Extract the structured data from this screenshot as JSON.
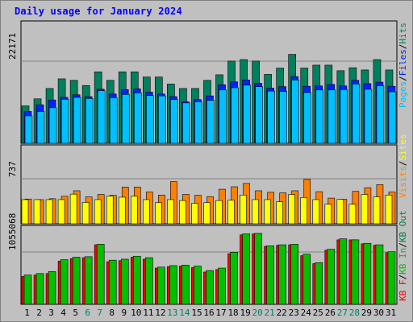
{
  "title": "Daily usage for January 2024",
  "colors": {
    "background": "#c0c0c0",
    "plot_bg": "#c0c0c0",
    "hits": "#00805c",
    "files": "#0024ff",
    "pages": "#00c0ff",
    "visits": "#ffff00",
    "sites": "#ff8000",
    "kb_in": "#00c000",
    "kb_out": "#008040",
    "kb_f": "#ff0000",
    "weekend_label": "#00805c",
    "weekday_label": "#000000",
    "title": "#0000ff"
  },
  "chart_data": [
    {
      "type": "bar",
      "panel": "hits-files-pages",
      "categories": [
        "1",
        "2",
        "3",
        "4",
        "5",
        "6",
        "7",
        "8",
        "9",
        "10",
        "11",
        "12",
        "13",
        "14",
        "15",
        "16",
        "17",
        "18",
        "19",
        "20",
        "21",
        "22",
        "23",
        "24",
        "25",
        "26",
        "27",
        "28",
        "29",
        "30",
        "31"
      ],
      "weekend_days": [
        "6",
        "7",
        "13",
        "14",
        "20",
        "21",
        "27",
        "28"
      ],
      "ytick_label": "22171",
      "ymax": 22171,
      "legend": [
        "Pages",
        "/",
        "Files",
        "/",
        "Hits"
      ],
      "series": [
        {
          "name": "Hits",
          "values": [
            10100,
            12000,
            14800,
            17400,
            17000,
            15600,
            19300,
            17000,
            19300,
            19300,
            17900,
            17900,
            16000,
            14800,
            14800,
            17000,
            18500,
            22200,
            22600,
            22200,
            18600,
            20300,
            24000,
            20300,
            21100,
            21100,
            19600,
            20400,
            19800,
            22600,
            19800
          ]
        },
        {
          "name": "Files",
          "values": [
            8600,
            10400,
            11700,
            12400,
            13100,
            12600,
            14600,
            13300,
            14500,
            14700,
            13800,
            13300,
            12600,
            11200,
            11800,
            12800,
            15800,
            16600,
            17100,
            16200,
            14900,
            15300,
            18000,
            15400,
            15500,
            15900,
            15500,
            17000,
            16100,
            16500,
            15400
          ]
        },
        {
          "name": "Pages",
          "values": [
            7400,
            8600,
            9600,
            11900,
            12400,
            12100,
            14200,
            12300,
            13200,
            13600,
            12900,
            12800,
            11800,
            10900,
            11200,
            11600,
            14400,
            15000,
            15700,
            15300,
            14100,
            14000,
            17100,
            13700,
            14400,
            14400,
            14500,
            16000,
            14600,
            15500,
            13900
          ]
        }
      ]
    },
    {
      "type": "bar",
      "panel": "visits-sites",
      "categories": [
        "1",
        "2",
        "3",
        "4",
        "5",
        "6",
        "7",
        "8",
        "9",
        "10",
        "11",
        "12",
        "13",
        "14",
        "15",
        "16",
        "17",
        "18",
        "19",
        "20",
        "21",
        "22",
        "23",
        "24",
        "25",
        "26",
        "27",
        "28",
        "29",
        "30",
        "31"
      ],
      "ytick_label": "737",
      "ymax": 737,
      "legend": [
        "Visits",
        "/",
        "Sites"
      ],
      "series": [
        {
          "name": "Visits",
          "values": [
            395,
            395,
            395,
            395,
            485,
            350,
            395,
            450,
            435,
            450,
            395,
            345,
            395,
            380,
            335,
            345,
            380,
            385,
            470,
            395,
            395,
            360,
            480,
            430,
            395,
            320,
            400,
            320,
            480,
            440,
            470
          ]
        },
        {
          "name": "Sites",
          "values": [
            405,
            395,
            410,
            450,
            540,
            440,
            480,
            465,
            600,
            600,
            520,
            470,
            690,
            480,
            465,
            445,
            565,
            605,
            660,
            540,
            515,
            505,
            540,
            725,
            525,
            420,
            400,
            530,
            590,
            640,
            520
          ]
        }
      ]
    },
    {
      "type": "bar",
      "panel": "kb",
      "categories": [
        "1",
        "2",
        "3",
        "4",
        "5",
        "6",
        "7",
        "8",
        "9",
        "10",
        "11",
        "12",
        "13",
        "14",
        "15",
        "16",
        "17",
        "18",
        "19",
        "20",
        "21",
        "22",
        "23",
        "24",
        "25",
        "26",
        "27",
        "28",
        "29",
        "30",
        "31"
      ],
      "ytick_label": "1055068",
      "ymax": 1055068,
      "legend": [
        "KB F",
        "/",
        "KB In",
        "/",
        "KB Out"
      ],
      "series": [
        {
          "name": "KB F",
          "values": [
            560000,
            590000,
            620000,
            870000,
            920000,
            940000,
            1200000,
            860000,
            880000,
            950000,
            910000,
            730000,
            760000,
            770000,
            740000,
            650000,
            700000,
            1020000,
            1400000,
            1420000,
            1170000,
            1190000,
            1200000,
            980000,
            820000,
            1090000,
            1300000,
            1300000,
            1220000,
            1190000,
            1040000
          ]
        },
        {
          "name": "KB In",
          "values": [
            590000,
            620000,
            660000,
            900000,
            950000,
            960000,
            1210000,
            890000,
            910000,
            970000,
            940000,
            750000,
            780000,
            790000,
            770000,
            680000,
            730000,
            1050000,
            1420000,
            1430000,
            1180000,
            1200000,
            1210000,
            1010000,
            840000,
            1110000,
            1320000,
            1300000,
            1230000,
            1200000,
            1060000
          ]
        }
      ]
    }
  ]
}
